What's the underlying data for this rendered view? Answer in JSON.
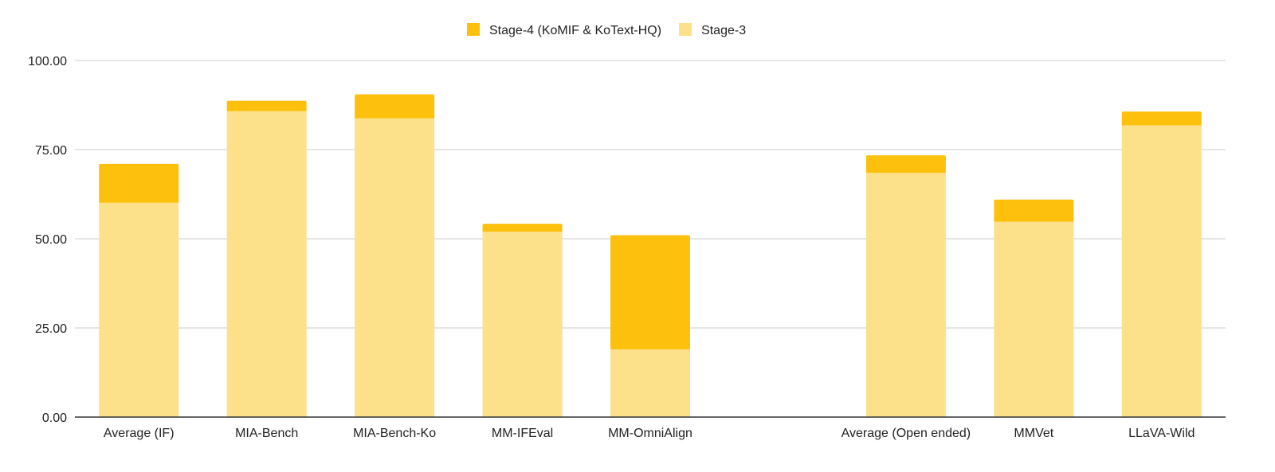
{
  "chart_data": {
    "type": "bar",
    "stacked": true,
    "title": "",
    "xlabel": "",
    "ylabel": "",
    "ylim": [
      0,
      100
    ],
    "yticks": [
      0,
      25,
      50,
      75,
      100
    ],
    "ytick_labels": [
      "0.00",
      "25.00",
      "50.00",
      "75.00",
      "100.00"
    ],
    "grid": true,
    "legend_position": "top",
    "categories": [
      "Average (IF)",
      "MIA-Bench",
      "MIA-Bench-Ko",
      "MM-IFEval",
      "MM-OmniAlign",
      "",
      "Average (Open ended)",
      "MMVet",
      "LLaVA-Wild"
    ],
    "series": [
      {
        "name": "Stage-3",
        "color": "#fde08a",
        "values": [
          60.1,
          85.8,
          83.8,
          52.0,
          19.0,
          null,
          68.5,
          54.8,
          81.8
        ]
      },
      {
        "name": "Stage-4 (KoMIF & KoText-HQ)",
        "color": "#fcc00d",
        "values": [
          10.9,
          2.9,
          6.7,
          2.2,
          32.0,
          null,
          4.9,
          6.2,
          3.9
        ]
      }
    ],
    "legend_order": [
      "Stage-4 (KoMIF & KoText-HQ)",
      "Stage-3"
    ]
  }
}
